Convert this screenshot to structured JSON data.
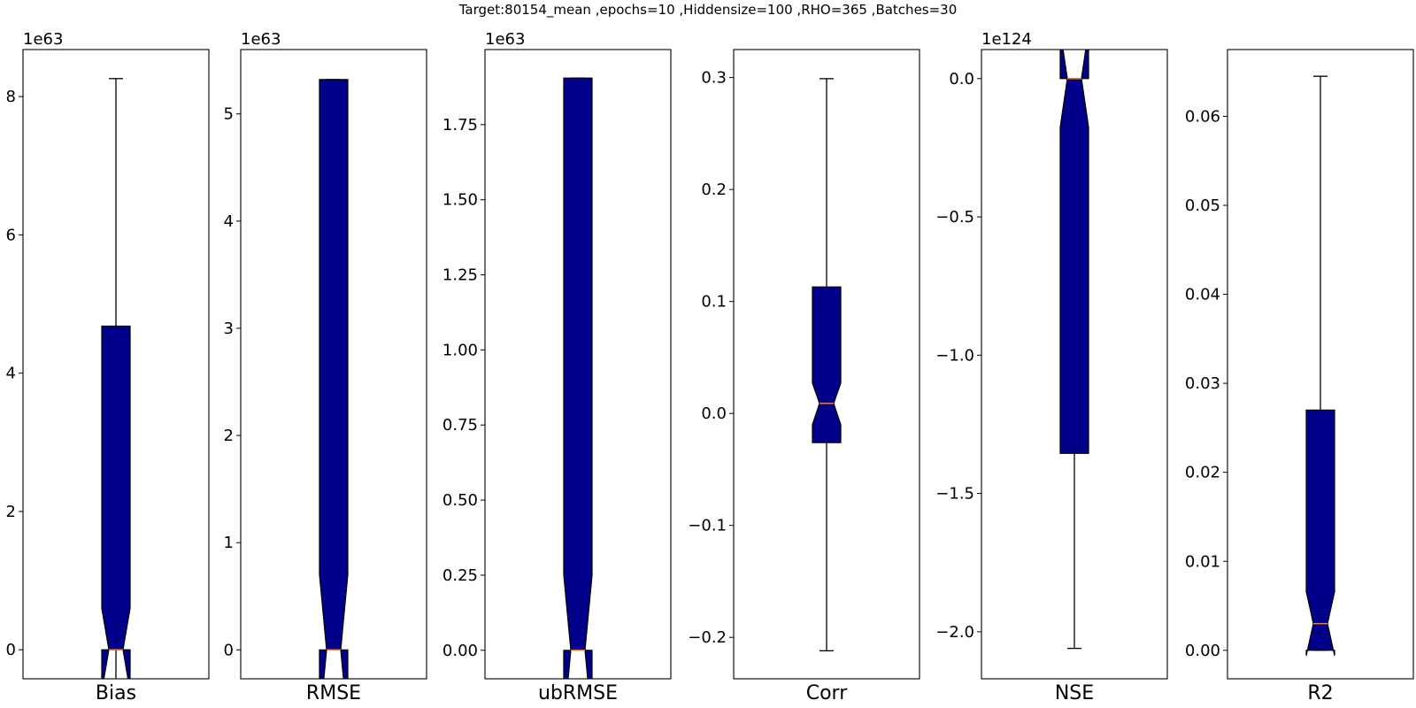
{
  "figure_title": "Target:80154_mean ,epochs=10 ,Hiddensize=100 ,RHO=365 ,Batches=30",
  "colors": {
    "box_fill": "#00008B",
    "median": "#FF7F0E",
    "line": "#000000",
    "background": "#FFFFFF"
  },
  "chart_data": [
    {
      "type": "boxplot",
      "notched": true,
      "title": "Bias",
      "xlabel": "Bias",
      "offset_text": "1e63",
      "ylim": [
        -0.42,
        8.68
      ],
      "yticks": [
        0,
        2,
        4,
        6,
        8
      ],
      "ytick_labels": [
        "0",
        "2",
        "4",
        "6",
        "8"
      ],
      "stats": {
        "whisker_low": -0.6,
        "q1": 0,
        "median": 0,
        "q3": 4.68,
        "whisker_high": 8.26,
        "notch_low": -0.6,
        "notch_high": 0.6
      }
    },
    {
      "type": "boxplot",
      "notched": true,
      "title": "RMSE",
      "xlabel": "RMSE",
      "offset_text": "1e63",
      "ylim": [
        -0.27,
        5.6
      ],
      "yticks": [
        0,
        1,
        2,
        3,
        4,
        5
      ],
      "ytick_labels": [
        "0",
        "1",
        "2",
        "3",
        "4",
        "5"
      ],
      "stats": {
        "whisker_low": 0,
        "q1": 0,
        "median": 0,
        "q3": 5.32,
        "whisker_high": 5.32,
        "notch_low": -0.7,
        "notch_high": 0.7
      }
    },
    {
      "type": "boxplot",
      "notched": true,
      "title": "ubRMSE",
      "xlabel": "ubRMSE",
      "offset_text": "1e63",
      "ylim": [
        -0.095,
        2.0
      ],
      "yticks": [
        0,
        0.25,
        0.5,
        0.75,
        1.0,
        1.25,
        1.5,
        1.75
      ],
      "ytick_labels": [
        "0.00",
        "0.25",
        "0.50",
        "0.75",
        "1.00",
        "1.25",
        "1.50",
        "1.75"
      ],
      "stats": {
        "whisker_low": 0,
        "q1": 0,
        "median": 0,
        "q3": 1.905,
        "whisker_high": 1.905,
        "notch_low": -0.25,
        "notch_high": 0.25
      }
    },
    {
      "type": "boxplot",
      "notched": true,
      "title": "Corr",
      "xlabel": "Corr",
      "offset_text": "",
      "ylim": [
        -0.237,
        0.325
      ],
      "yticks": [
        -0.2,
        -0.1,
        0.0,
        0.1,
        0.2,
        0.3
      ],
      "ytick_labels": [
        "−0.2",
        "−0.1",
        "0.0",
        "0.1",
        "0.2",
        "0.3"
      ],
      "stats": {
        "whisker_low": -0.212,
        "q1": -0.026,
        "median": 0.009,
        "q3": 0.113,
        "whisker_high": 0.299,
        "notch_low": -0.01,
        "notch_high": 0.027
      }
    },
    {
      "type": "boxplot",
      "notched": true,
      "title": "NSE",
      "xlabel": "NSE",
      "offset_text": "1e124",
      "ylim": [
        -2.17,
        0.105
      ],
      "yticks": [
        -2.0,
        -1.5,
        -1.0,
        -0.5,
        0.0
      ],
      "ytick_labels": [
        "−2.0",
        "−1.5",
        "−1.0",
        "−0.5",
        "0.0"
      ],
      "stats": {
        "whisker_low": -2.06,
        "q1": -1.355,
        "median": 0,
        "q3": 0,
        "whisker_high": 0,
        "notch_low": -0.175,
        "notch_high": 0.175
      }
    },
    {
      "type": "boxplot",
      "notched": true,
      "title": "R2",
      "xlabel": "R2",
      "offset_text": "",
      "ylim": [
        -0.0032,
        0.0675
      ],
      "yticks": [
        0.0,
        0.01,
        0.02,
        0.03,
        0.04,
        0.05,
        0.06
      ],
      "ytick_labels": [
        "0.00",
        "0.01",
        "0.02",
        "0.03",
        "0.04",
        "0.05",
        "0.06"
      ],
      "stats": {
        "whisker_low": 0,
        "q1": 0,
        "median": 0.003,
        "q3": 0.027,
        "whisker_high": 0.0645,
        "notch_low": -0.0006,
        "notch_high": 0.0066
      }
    }
  ]
}
